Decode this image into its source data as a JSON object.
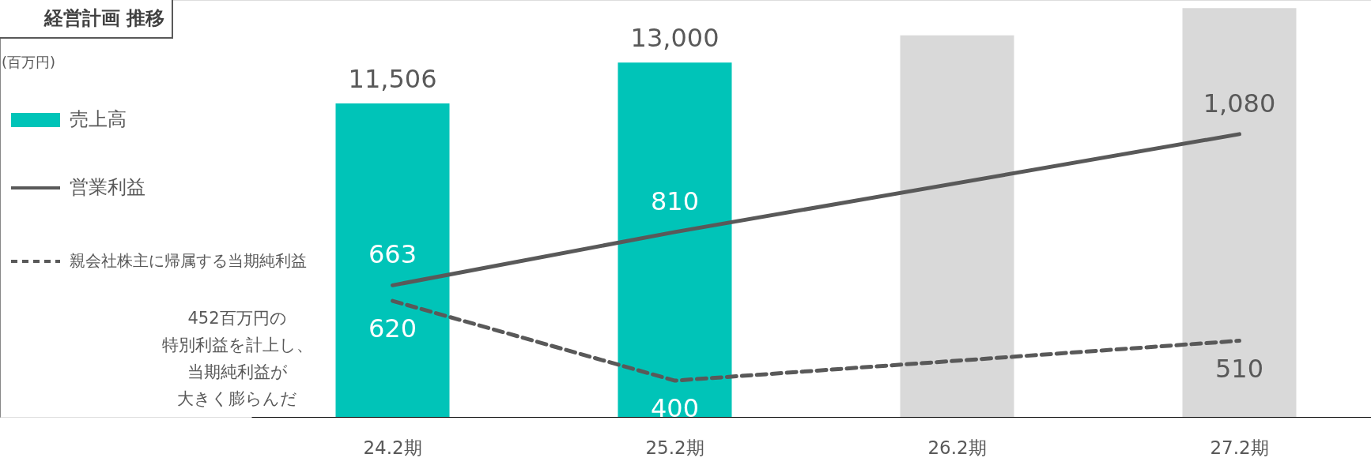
{
  "chart_data": {
    "type": "bar",
    "title": "経営計画 推移",
    "annotations": [
      "(百万円)",
      "452百万円の",
      "特別利益を計上し、",
      "当期純利益が",
      "大きく膨らんだ"
    ],
    "categories": [
      "24.2期",
      "25.2期",
      "26.2期",
      "27.2期"
    ],
    "series": [
      {
        "name": "売上高",
        "values": [
          11506,
          13000,
          14000,
          15000
        ],
        "colors": [
          "#00c4b8",
          "#00c4b8",
          "#d9d9d9",
          "#d9d9d9"
        ],
        "value_labels": [
          "11,506",
          "13,000",
          null,
          null
        ]
      },
      {
        "name": "営業利益",
        "type": "line",
        "axis": "y2",
        "color": "#595959",
        "line_style": "solid",
        "x": [
          "24.2期",
          "25.2期",
          "27.2期"
        ],
        "values": [
          663,
          810,
          1080
        ],
        "value_labels": [
          "663",
          "810",
          "1,080"
        ]
      },
      {
        "name": "親会社株主に帰属する当期純利益",
        "type": "line",
        "axis": "y2",
        "color": "#595959",
        "line_style": "dashed",
        "x": [
          "24.2期",
          "25.2期",
          "27.2期"
        ],
        "values": [
          620,
          400,
          510
        ],
        "value_labels": [
          "620",
          "400",
          "510"
        ]
      }
    ],
    "ylim": [
      0,
      15300
    ],
    "y2lim": [
      300,
      1450
    ],
    "tick_labels": "x",
    "legend": "left",
    "grid": false
  }
}
